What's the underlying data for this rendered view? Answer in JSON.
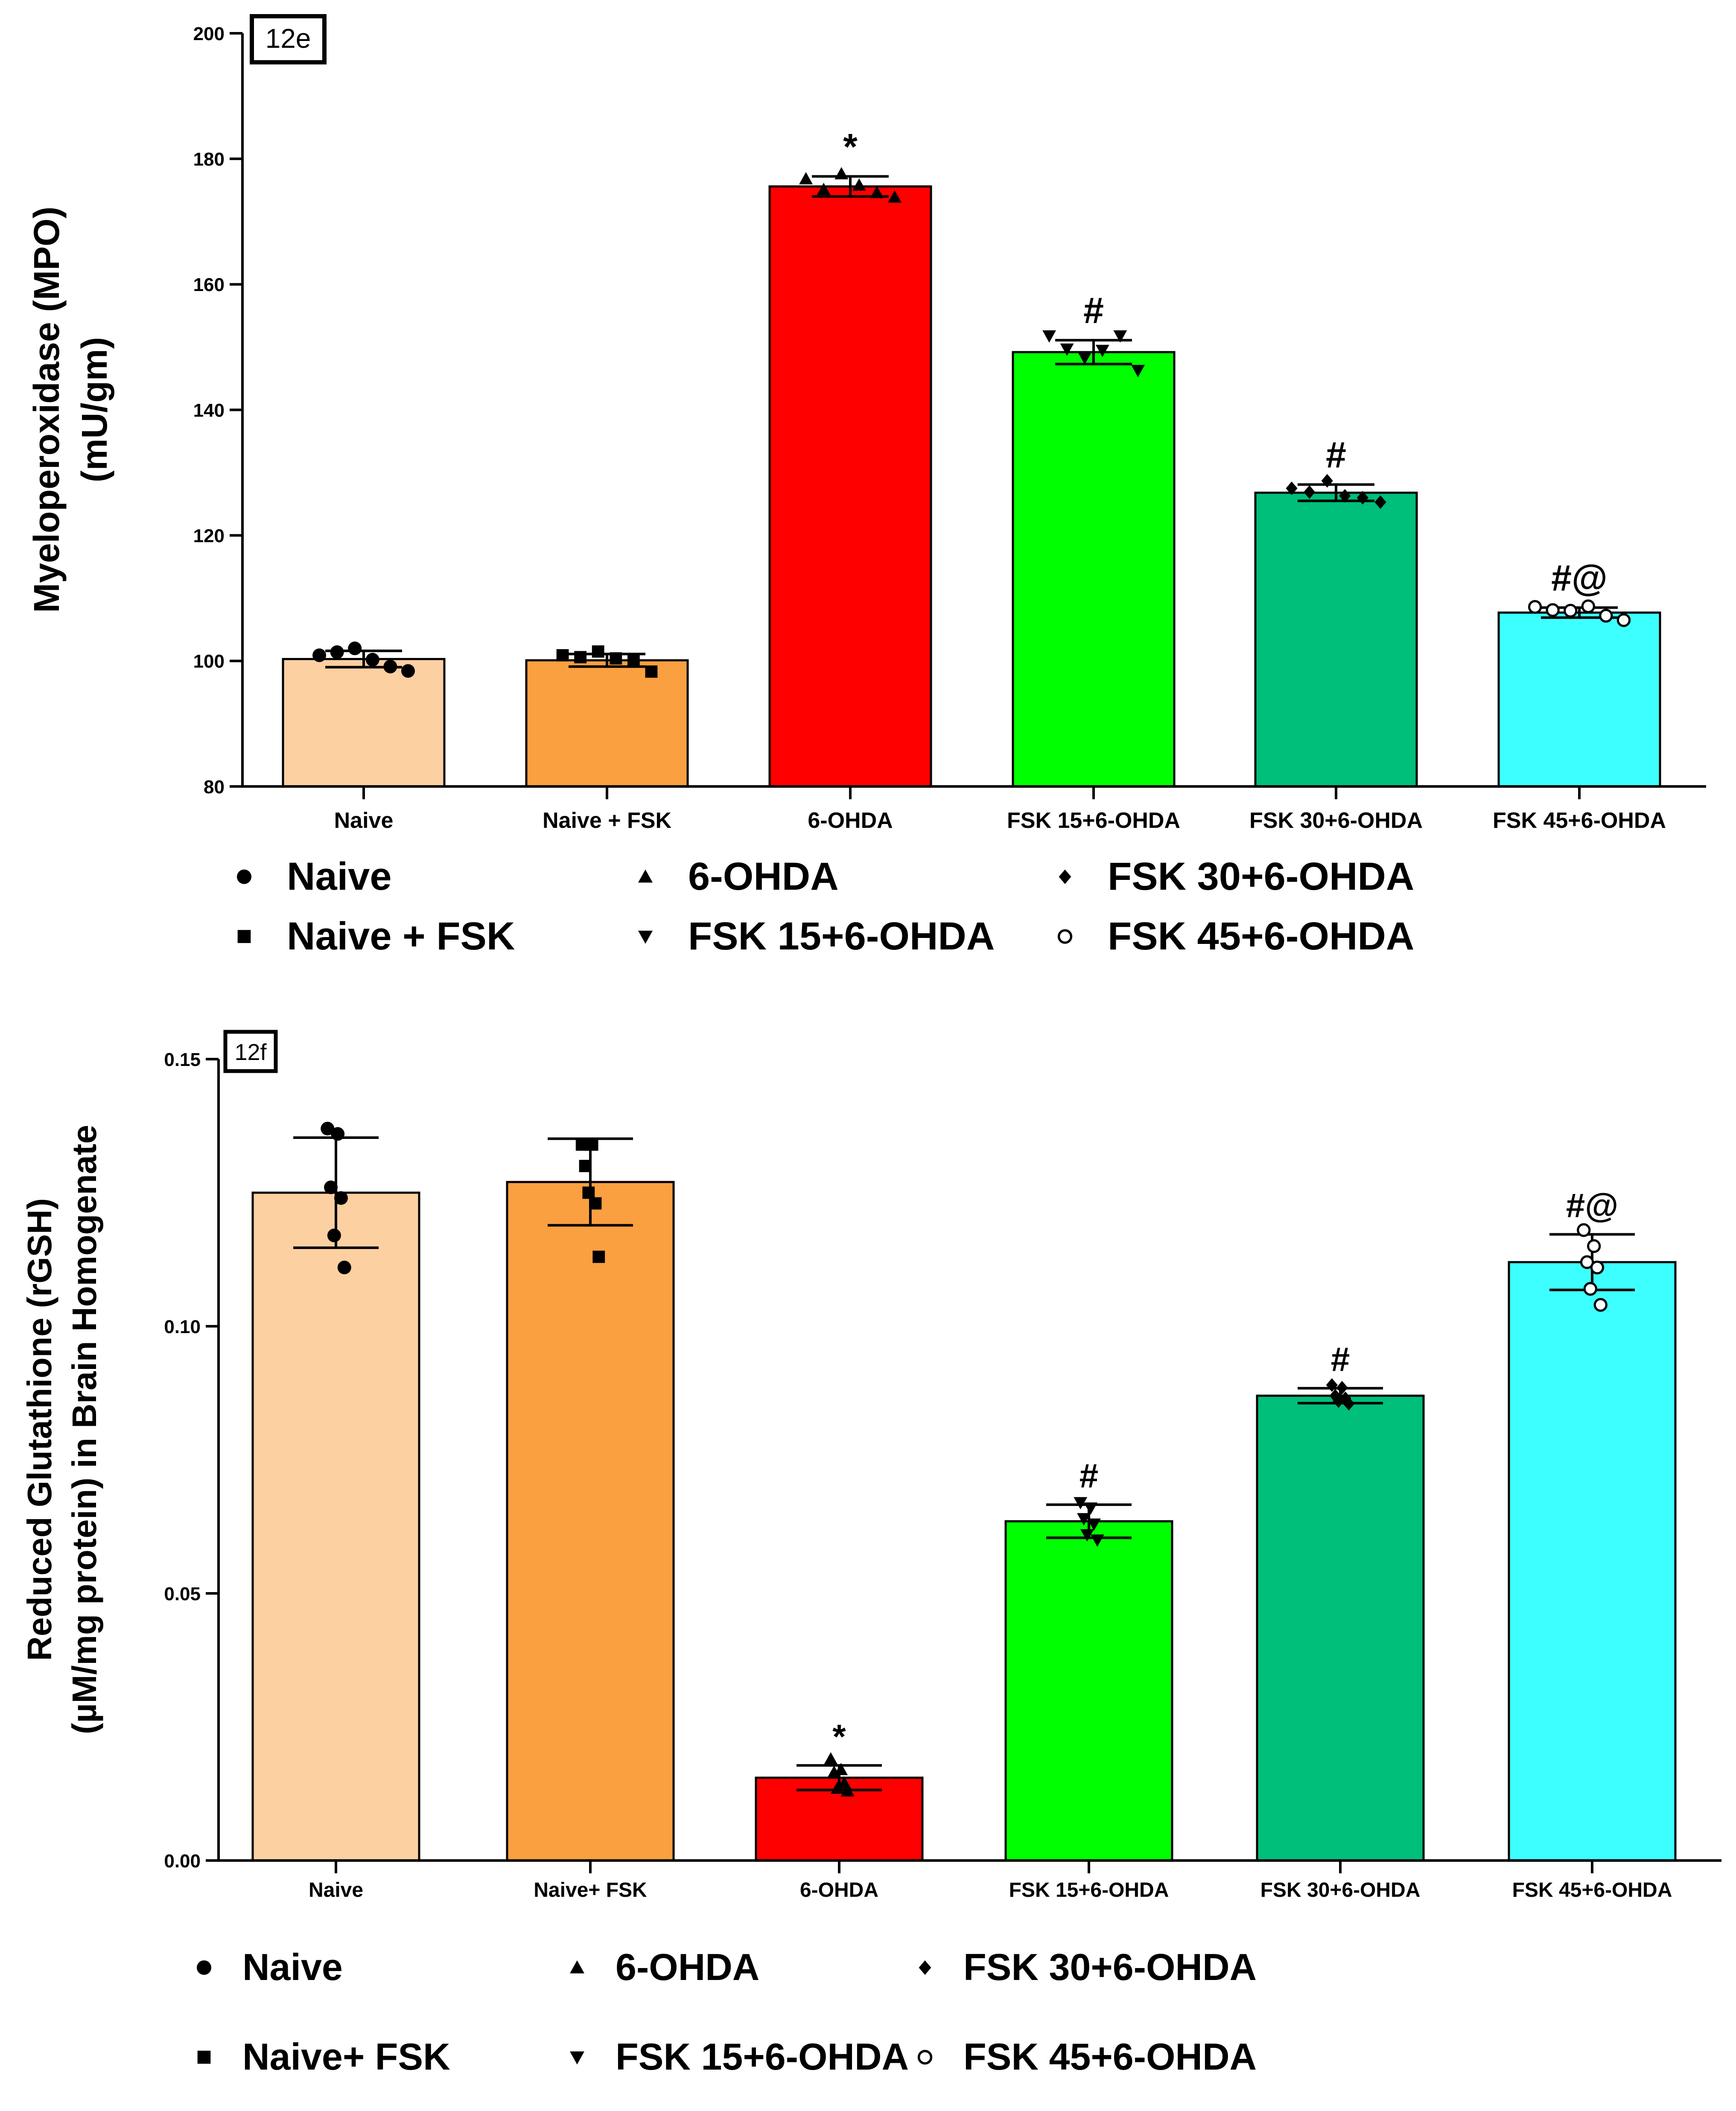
{
  "chart_data": [
    {
      "type": "bar",
      "panel_label": "12e",
      "ylabel_lines": [
        "Myeloperoxidase (MPO)",
        "(mU/gm)"
      ],
      "xlabel": "",
      "ylim": [
        80,
        200
      ],
      "yticks": [
        80,
        100,
        120,
        140,
        160,
        180,
        200
      ],
      "ytick_labels": [
        "80",
        "100",
        "120",
        "140",
        "160",
        "180",
        "200"
      ],
      "categories": [
        "Naive",
        "Naive + FSK",
        "6-OHDA",
        "FSK 15+6-OHDA",
        "FSK 30+6-OHDA",
        "FSK 45+6-OHDA"
      ],
      "values": [
        100.3,
        100.1,
        175.6,
        149.2,
        126.8,
        107.7
      ],
      "errors": [
        1.3,
        1.0,
        1.6,
        1.9,
        1.3,
        0.8
      ],
      "points": [
        [
          100.9,
          101.4,
          102.0,
          100.2,
          99.1,
          98.4
        ],
        [
          100.9,
          100.6,
          101.5,
          100.4,
          100.2,
          98.3
        ],
        [
          176.8,
          175.1,
          177.6,
          175.8,
          174.6,
          173.9
        ],
        [
          151.8,
          149.7,
          148.3,
          149.5,
          151.8,
          146.3
        ],
        [
          127.5,
          126.9,
          128.7,
          126.3,
          126.0,
          125.3
        ],
        [
          108.6,
          108.1,
          108.0,
          108.7,
          107.2,
          106.5
        ]
      ],
      "annotations": [
        "",
        "",
        "*",
        "#",
        "#",
        "#@"
      ],
      "colors": [
        "#fdd0a2",
        "#fba040",
        "#ff0000",
        "#00ff00",
        "#00bf7a",
        "#3effff"
      ],
      "legend": {
        "items": [
          {
            "label": "Naive",
            "marker": "circle"
          },
          {
            "label": "Naive + FSK",
            "marker": "square"
          },
          {
            "label": "6-OHDA",
            "marker": "triangle-up"
          },
          {
            "label": "FSK 15+6-OHDA",
            "marker": "triangle-down"
          },
          {
            "label": "FSK 30+6-OHDA",
            "marker": "diamond"
          },
          {
            "label": "FSK 45+6-OHDA",
            "marker": "open-circle"
          }
        ]
      }
    },
    {
      "type": "bar",
      "panel_label": "12f",
      "ylabel_lines": [
        "Reduced Glutathione (rGSH)",
        "(µM/mg protein) in Brain Homogenate"
      ],
      "xlabel": "",
      "ylim": [
        0,
        0.15
      ],
      "yticks": [
        0,
        0.05,
        0.1,
        0.15
      ],
      "ytick_labels": [
        "0.00",
        "0.05",
        "0.10",
        "0.15"
      ],
      "categories": [
        "Naive",
        "Naive+ FSK",
        "6-OHDA",
        "FSK 15+6-OHDA",
        "FSK 30+6-OHDA",
        "FSK 45+6-OHDA"
      ],
      "values": [
        0.125,
        0.127,
        0.0155,
        0.0635,
        0.087,
        0.112
      ],
      "errors": [
        0.0103,
        0.0081,
        0.0023,
        0.0031,
        0.0014,
        0.0052
      ],
      "points": [
        [
          0.137,
          0.136,
          0.126,
          0.124,
          0.117,
          0.111
        ],
        [
          0.134,
          0.134,
          0.13,
          0.123,
          0.125,
          0.113
        ],
        [
          0.019,
          0.017,
          0.0165,
          0.0145,
          0.0135,
          0.013
        ],
        [
          0.067,
          0.066,
          0.064,
          0.063,
          0.061,
          0.06
        ],
        [
          0.089,
          0.0885,
          0.087,
          0.0865,
          0.086,
          0.0855
        ],
        [
          0.118,
          0.115,
          0.112,
          0.111,
          0.107,
          0.104
        ]
      ],
      "annotations": [
        "",
        "",
        "*",
        "#",
        "#",
        "#@"
      ],
      "colors": [
        "#fdd0a2",
        "#fba040",
        "#ff0000",
        "#00ff00",
        "#00bf7a",
        "#3effff"
      ],
      "legend": {
        "items": [
          {
            "label": "Naive",
            "marker": "circle"
          },
          {
            "label": "Naive+ FSK",
            "marker": "square"
          },
          {
            "label": "6-OHDA",
            "marker": "triangle-up"
          },
          {
            "label": "FSK 15+6-OHDA",
            "marker": "triangle-down"
          },
          {
            "label": "FSK 30+6-OHDA",
            "marker": "diamond"
          },
          {
            "label": "FSK 45+6-OHDA",
            "marker": "open-circle"
          }
        ]
      }
    }
  ]
}
